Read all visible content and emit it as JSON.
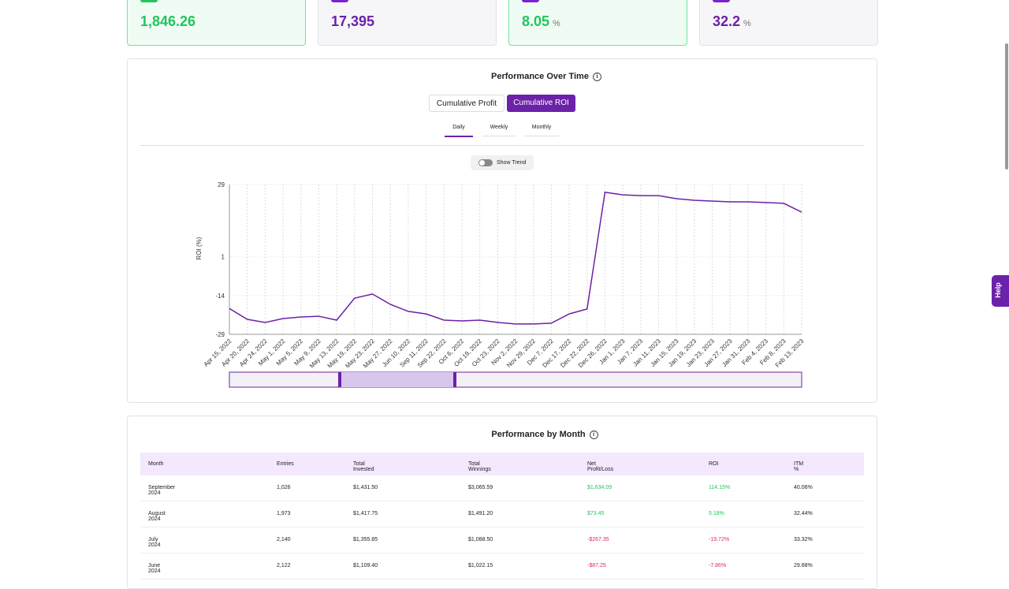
{
  "stats": [
    {
      "value": "1,846.26"
    },
    {
      "value": "17,395"
    },
    {
      "value": "8.05",
      "unit": "%"
    },
    {
      "value": "32.2",
      "unit": "%"
    }
  ],
  "performance": {
    "title": "Performance Over Time",
    "buttons": [
      "Cumulative Profit",
      "Cumulative ROI"
    ],
    "tabs": [
      "Daily",
      "Weekly",
      "Monthly"
    ],
    "toggle": "Show Trend"
  },
  "chart_data": {
    "type": "line",
    "y_label": "ROI (%)",
    "categories": [
      "Apr 15, 2022",
      "Apr 20, 2022",
      "Apr 24, 2022",
      "May 1, 2022",
      "May 5, 2022",
      "May 9, 2022",
      "May 13, 2022",
      "May 19, 2022",
      "May 23, 2022",
      "May 27, 2022",
      "Jun 10, 2022",
      "Sep 11, 2022",
      "Sep 22, 2022",
      "Oct 6, 2022",
      "Oct 19, 2022",
      "Oct 23, 2022",
      "Nov 2, 2022",
      "Nov 29, 2022",
      "Dec 7, 2022",
      "Dec 17, 2022",
      "Dec 22, 2022",
      "Dec 26, 2022",
      "Jan 1, 2023",
      "Jan 7, 2023",
      "Jan 11, 2023",
      "Jan 15, 2023",
      "Jan 19, 2023",
      "Jan 23, 2023",
      "Jan 27, 2023",
      "Jan 31, 2023",
      "Feb 4, 2023",
      "Feb 8, 2023",
      "Feb 13, 2023"
    ],
    "values": [
      -19,
      -23.2,
      -24.4,
      -22.9,
      -22.3,
      -22,
      -23.5,
      -15,
      -13.4,
      -17.4,
      -20.1,
      -21.1,
      -23.5,
      -23.8,
      -23.5,
      -24.4,
      -25,
      -25,
      -24.7,
      -21.1,
      -19.2,
      26,
      25,
      24.7,
      24.7,
      23.5,
      22.9,
      22.6,
      22.3,
      22.3,
      22,
      21.7,
      18.3
    ],
    "color": "#6b21a8",
    "ylim": [
      -29,
      29
    ],
    "yticks": [
      -29,
      -14,
      1,
      29
    ],
    "grid": true
  },
  "monthly": {
    "title": "Performance by Month",
    "columns": [
      "Month",
      "Entries",
      "Total Invested",
      "Total Winnings",
      "Net Profit/Loss",
      "ROI",
      "ITM %"
    ],
    "rows": [
      [
        "September 2024",
        "1,026",
        "$1,431.50",
        "$3,065.59",
        "$1,634.09",
        "114.15%",
        "40.06%"
      ],
      [
        "August 2024",
        "1,973",
        "$1,417.75",
        "$1,491.20",
        "$73.45",
        "5.18%",
        "32.44%"
      ],
      [
        "July 2024",
        "2,140",
        "$1,355.85",
        "$1,088.50",
        "-$267.35",
        "-19.72%",
        "33.32%"
      ],
      [
        "June 2024",
        "2,122",
        "$1,109.40",
        "$1,022.15",
        "-$87.25",
        "-7.86%",
        "29.88%"
      ]
    ]
  },
  "help": "Help"
}
